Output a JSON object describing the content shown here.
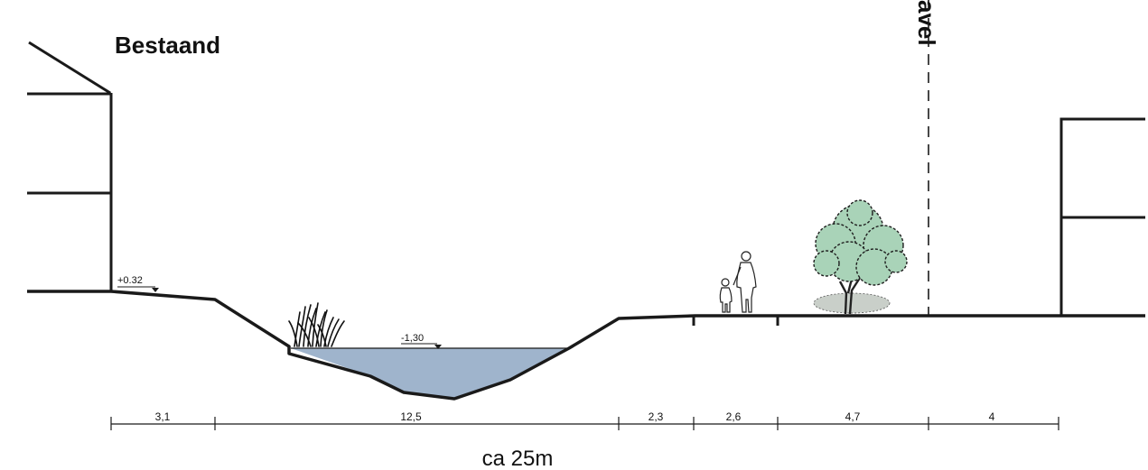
{
  "title": "Bestaand",
  "side_label": "avel",
  "levels": {
    "left_bank": "+0.32",
    "water": "-1,30"
  },
  "dimensions": [
    "3,1",
    "12,5",
    "2,3",
    "2,6",
    "4,7",
    "4"
  ],
  "total_width": "ca 25m",
  "colors": {
    "water": "#9fb4cc",
    "line": "#1a1a1a",
    "tree_foliage": "#a9d3b8",
    "tree_outline": "#1e1e1e"
  },
  "icons": [
    "reed-icon",
    "pedestrian-adult-icon",
    "pedestrian-child-icon",
    "tree-icon"
  ]
}
